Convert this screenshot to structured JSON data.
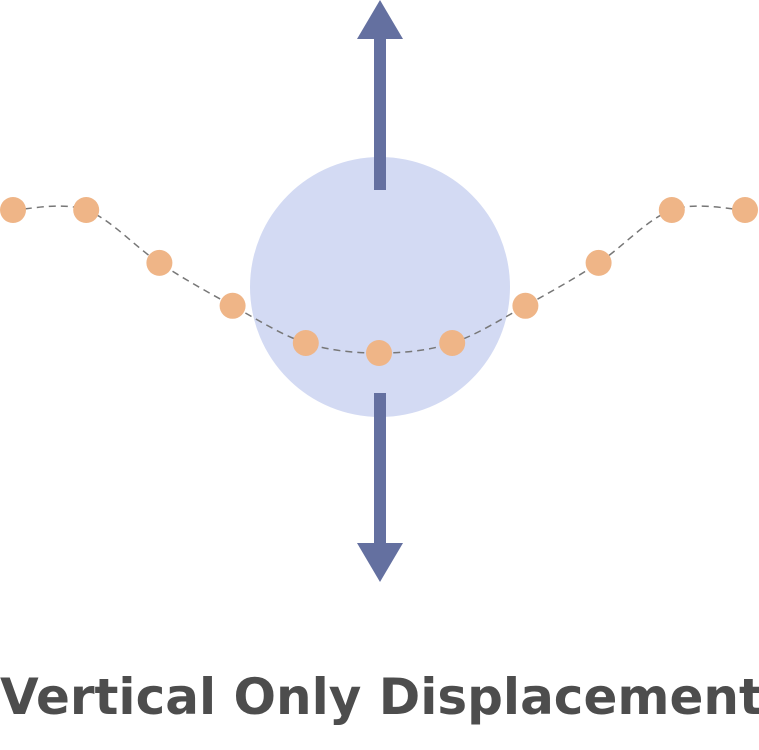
{
  "caption": "Vertical Only Displacement",
  "colors": {
    "blob": "#d3daf3",
    "arrow": "#6470a0",
    "dot": "#efb587",
    "curve": "#777777",
    "text": "#4d4d4d"
  },
  "icons": {
    "up_arrow": "arrow-up-icon",
    "down_arrow": "arrow-down-icon"
  },
  "displacement_profile": {
    "description_units": "relative vertical displacement per point, 0 = baseline, 1 = max",
    "values": [
      0,
      0,
      0.37,
      0.67,
      0.93,
      1,
      0.93,
      0.67,
      0.37,
      0,
      0
    ]
  }
}
